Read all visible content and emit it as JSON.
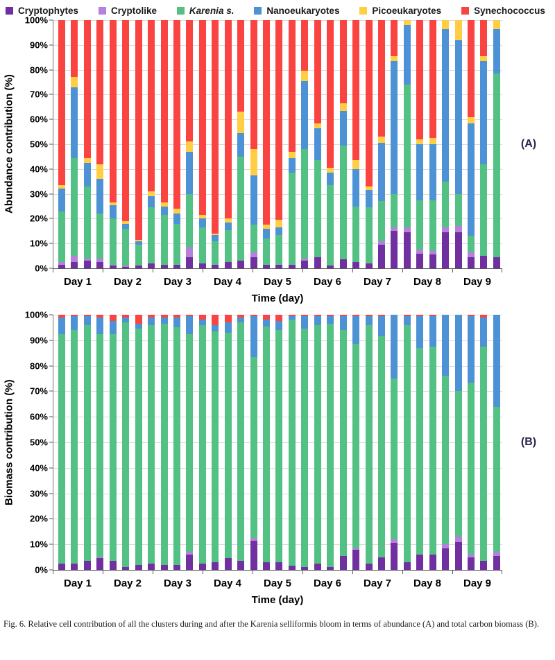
{
  "legend": {
    "items": [
      {
        "label": "Cryptophytes",
        "slug": "cryptophytes",
        "color": "#7030A0",
        "italic": false
      },
      {
        "label": "Cryptolike",
        "slug": "cryptolike",
        "color": "#B77FDE",
        "italic": false
      },
      {
        "label": "Karenia s.",
        "slug": "karenia",
        "color": "#53C183",
        "italic": true
      },
      {
        "label": "Nanoeukaryotes",
        "slug": "nanoeukaryotes",
        "color": "#4E92D6",
        "italic": false
      },
      {
        "label": "Picoeukaryotes",
        "slug": "picoeukaryotes",
        "color": "#FFCE45",
        "italic": false
      },
      {
        "label": "Synechococcus",
        "slug": "synechococcus",
        "color": "#FA4442",
        "italic": false
      }
    ]
  },
  "chart_data": {
    "type": "bar",
    "stacked": true,
    "stacked_to": 100,
    "series_order": [
      "Cryptophytes",
      "Cryptolike",
      "Karenia s.",
      "Nanoeukaryotes",
      "Picoeukaryotes",
      "Synechococcus"
    ],
    "charts": [
      {
        "panel_label": "(A)",
        "ylabel": "Abundance contribution (%)",
        "xlabel": "Time (day)",
        "ylim": [
          0,
          100
        ],
        "ytick_labels": [
          "100%",
          "90%",
          "80%",
          "70%",
          "60%",
          "50%",
          "40%",
          "30%",
          "20%",
          "10%",
          "0%"
        ],
        "day_labels": [
          "Day 1",
          "Day 2",
          "Day 3",
          "Day 4",
          "Day 5",
          "Day 6",
          "Day 7",
          "Day 8",
          "Day 9"
        ],
        "bars_per_day": [
          3,
          4,
          4,
          4,
          4,
          4,
          4,
          4,
          4
        ],
        "bars": [
          [
            1.5,
            1,
            20.5,
            9,
            1.5,
            66.5
          ],
          [
            2.5,
            2.5,
            39.5,
            28.5,
            4,
            23
          ],
          [
            3,
            1,
            29,
            9.5,
            2,
            55.5
          ],
          [
            2.5,
            1.5,
            18,
            14,
            6,
            58
          ],
          [
            1,
            0.5,
            18.5,
            5.5,
            1,
            73.5
          ],
          [
            0.5,
            0.5,
            15,
            2,
            1,
            81
          ],
          [
            1,
            0,
            8.5,
            1.5,
            0.5,
            88.5
          ],
          [
            2,
            0,
            22.5,
            4.5,
            2,
            69
          ],
          [
            1.5,
            0,
            20,
            3.5,
            1.5,
            73.5
          ],
          [
            1.5,
            0,
            16.5,
            4,
            2,
            76
          ],
          [
            4.5,
            4,
            21.5,
            17,
            4,
            49
          ],
          [
            2,
            0,
            14.5,
            3.5,
            1.5,
            78.5
          ],
          [
            1.5,
            0,
            9.5,
            2.5,
            0.5,
            86
          ],
          [
            2.5,
            0,
            13,
            3,
            1.5,
            80
          ],
          [
            3,
            0,
            42,
            9.5,
            8.5,
            37
          ],
          [
            4.5,
            2,
            11,
            20,
            10.5,
            52
          ],
          [
            1.5,
            0,
            10.5,
            4,
            1.5,
            82.5
          ],
          [
            1.5,
            0,
            12,
            3,
            3,
            80.5
          ],
          [
            1.5,
            0,
            37,
            6,
            2.5,
            53
          ],
          [
            3,
            1,
            44,
            27.5,
            4,
            20.5
          ],
          [
            4.5,
            0,
            39,
            13,
            2,
            41.5
          ],
          [
            1,
            0,
            32.5,
            5,
            2,
            59.5
          ],
          [
            3.5,
            0,
            46,
            14,
            3,
            33.5
          ],
          [
            2.5,
            0,
            22.5,
            15,
            3.5,
            56.5
          ],
          [
            2,
            0,
            22.5,
            7,
            1.5,
            67
          ],
          [
            9.5,
            1.5,
            16,
            23.5,
            2.5,
            47
          ],
          [
            15,
            1.5,
            13.5,
            53.5,
            2,
            14.5
          ],
          [
            14.5,
            2,
            57.5,
            24,
            2,
            0
          ],
          [
            6,
            1.5,
            20,
            22.5,
            2,
            48
          ],
          [
            5.5,
            1.5,
            20.5,
            22.5,
            2.5,
            47.5
          ],
          [
            14.5,
            2,
            18.5,
            61.5,
            3.5,
            0
          ],
          [
            14.5,
            2.5,
            13,
            62,
            8,
            0
          ],
          [
            4.5,
            2,
            6.5,
            45.5,
            2.5,
            39
          ],
          [
            5,
            0,
            37,
            41.5,
            2,
            14.5
          ],
          [
            4.5,
            0,
            74,
            18,
            3.5,
            0
          ]
        ]
      },
      {
        "panel_label": "(B)",
        "ylabel": "Biomass contribution (%)",
        "xlabel": "Time (day)",
        "ylim": [
          0,
          100
        ],
        "ytick_labels": [
          "100%",
          "90%",
          "80%",
          "70%",
          "60%",
          "50%",
          "40%",
          "30%",
          "20%",
          "10%",
          "0%"
        ],
        "day_labels": [
          "Day 1",
          "Day 2",
          "Day 3",
          "Day 4",
          "Day 5",
          "Day 6",
          "Day 7",
          "Day 8",
          "Day 9"
        ],
        "bars_per_day": [
          3,
          4,
          4,
          4,
          4,
          4,
          4,
          4,
          4
        ],
        "bars": [
          [
            2.5,
            0,
            90,
            6.5,
            0,
            1
          ],
          [
            2.5,
            0,
            91.5,
            5.5,
            0,
            0.5
          ],
          [
            3.5,
            0,
            92.5,
            3.5,
            0,
            0.5
          ],
          [
            4.5,
            0.5,
            87.5,
            6.5,
            0,
            1
          ],
          [
            3.5,
            0,
            89,
            5,
            0,
            2.5
          ],
          [
            1,
            0,
            96,
            2,
            0,
            1
          ],
          [
            2,
            0,
            92.5,
            2,
            0,
            3.5
          ],
          [
            2.5,
            0,
            93.5,
            3,
            0,
            1
          ],
          [
            2,
            0,
            94.5,
            2.5,
            0,
            1
          ],
          [
            2,
            0,
            93,
            4,
            0,
            1
          ],
          [
            6,
            1,
            85.5,
            7,
            0,
            0.5
          ],
          [
            2.5,
            0,
            93.5,
            2,
            0,
            2
          ],
          [
            3,
            0,
            90.5,
            2.5,
            0,
            4
          ],
          [
            4.5,
            0,
            88.5,
            4,
            0,
            3
          ],
          [
            3.5,
            0,
            93.5,
            2,
            0,
            1
          ],
          [
            11.5,
            1,
            71,
            16,
            0,
            0.5
          ],
          [
            3,
            0,
            92.5,
            2.5,
            0,
            2
          ],
          [
            3,
            0,
            91,
            3.5,
            0,
            2.5
          ],
          [
            1.5,
            0,
            96.5,
            1.5,
            0,
            0.5
          ],
          [
            1,
            0,
            93.5,
            5,
            0,
            0.5
          ],
          [
            2.5,
            0,
            93.5,
            3.5,
            0,
            0.5
          ],
          [
            1,
            0,
            95.5,
            3,
            0,
            0.5
          ],
          [
            5.5,
            0,
            88.5,
            5.5,
            0,
            0.5
          ],
          [
            8,
            0.5,
            80,
            11,
            0,
            0.5
          ],
          [
            2.5,
            0,
            93.5,
            3.5,
            0,
            0.5
          ],
          [
            5,
            0,
            86.5,
            8,
            0,
            0.5
          ],
          [
            10.5,
            1.5,
            63,
            25,
            0,
            0
          ],
          [
            3,
            0,
            93,
            3.5,
            0,
            0.5
          ],
          [
            6,
            0,
            81,
            12.5,
            0,
            0.5
          ],
          [
            6,
            0,
            81.5,
            12,
            0,
            0.5
          ],
          [
            8.5,
            1.5,
            66,
            24,
            0,
            0
          ],
          [
            11,
            2,
            57,
            30,
            0,
            0
          ],
          [
            5,
            1,
            67.5,
            26,
            0,
            0.5
          ],
          [
            3.5,
            0,
            84,
            11.5,
            0,
            1
          ],
          [
            5.5,
            1.5,
            57,
            36,
            0,
            0
          ]
        ]
      }
    ]
  },
  "caption": "Fig. 6.  Relative cell contribution of all the clusters during and after the Karenia selliformis bloom in terms of abundance (A) and total carbon biomass (B)."
}
